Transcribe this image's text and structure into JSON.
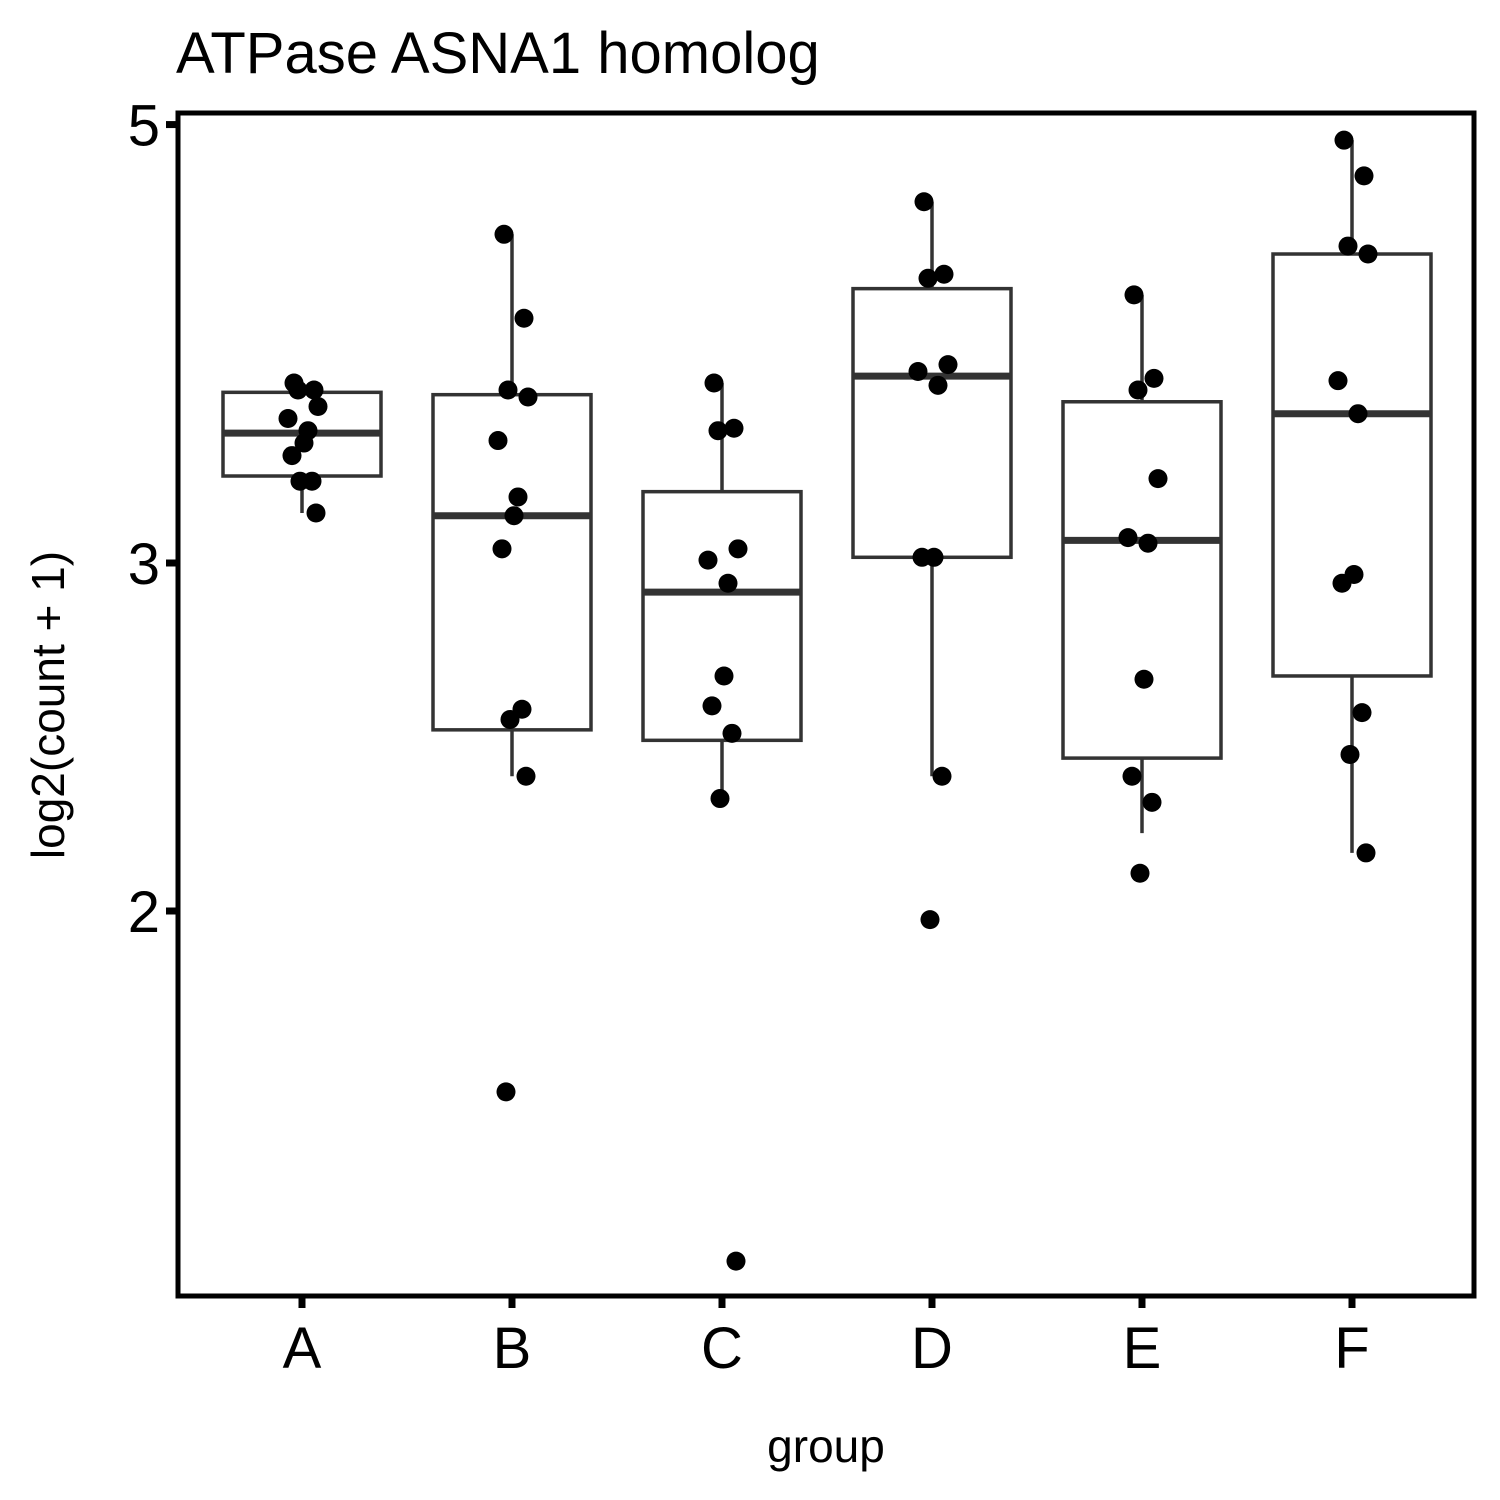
{
  "chart_data": {
    "type": "boxplot",
    "title": "ATPase ASNA1 homolog",
    "xlabel": "group",
    "ylabel": "log2(count + 1)",
    "y_scale": "log",
    "y_ticks": [
      2,
      3,
      5
    ],
    "ylim": [
      1.2,
      5.1
    ],
    "grid": false,
    "legend": "none",
    "categories": [
      "A",
      "B",
      "C",
      "D",
      "E",
      "F"
    ],
    "boxes": [
      {
        "group": "A",
        "whisker_low": 3.18,
        "q1": 3.32,
        "median": 3.49,
        "q3": 3.66,
        "whisker_high": 3.67
      },
      {
        "group": "B",
        "whisker_low": 2.34,
        "q1": 2.47,
        "median": 3.17,
        "q3": 3.65,
        "whisker_high": 4.4
      },
      {
        "group": "C",
        "whisker_low": 2.28,
        "q1": 2.44,
        "median": 2.9,
        "q3": 3.26,
        "whisker_high": 3.7
      },
      {
        "group": "D",
        "whisker_low": 2.34,
        "q1": 3.02,
        "median": 3.73,
        "q3": 4.13,
        "whisker_high": 4.57
      },
      {
        "group": "E",
        "whisker_low": 2.19,
        "q1": 2.39,
        "median": 3.08,
        "q3": 3.62,
        "whisker_high": 4.1
      },
      {
        "group": "F",
        "whisker_low": 2.14,
        "q1": 2.63,
        "median": 3.57,
        "q3": 4.3,
        "whisker_high": 4.91
      }
    ],
    "points": [
      {
        "group": "A",
        "values": [
          3.7,
          3.67,
          3.67,
          3.6,
          3.55,
          3.5,
          3.45,
          3.4,
          3.3,
          3.3,
          3.18
        ]
      },
      {
        "group": "B",
        "values": [
          4.4,
          3.99,
          3.67,
          3.64,
          3.46,
          3.24,
          3.17,
          3.05,
          2.53,
          2.5,
          2.34,
          1.62
        ]
      },
      {
        "group": "C",
        "values": [
          3.7,
          3.51,
          3.5,
          3.05,
          3.01,
          2.93,
          2.63,
          2.54,
          2.46,
          2.28,
          1.33
        ]
      },
      {
        "group": "D",
        "values": [
          4.57,
          4.2,
          4.18,
          3.78,
          3.75,
          3.69,
          3.02,
          3.02,
          2.34,
          1.98
        ]
      },
      {
        "group": "E",
        "values": [
          4.1,
          3.72,
          3.67,
          3.31,
          3.09,
          3.07,
          2.62,
          2.34,
          2.27,
          2.09
        ]
      },
      {
        "group": "F",
        "values": [
          4.91,
          4.71,
          4.34,
          4.3,
          3.71,
          3.57,
          2.96,
          2.93,
          2.52,
          2.4,
          2.14
        ]
      }
    ]
  },
  "colors": {
    "box_stroke": "#333333",
    "point": "#000000",
    "axis": "#000000",
    "background": "#ffffff"
  }
}
